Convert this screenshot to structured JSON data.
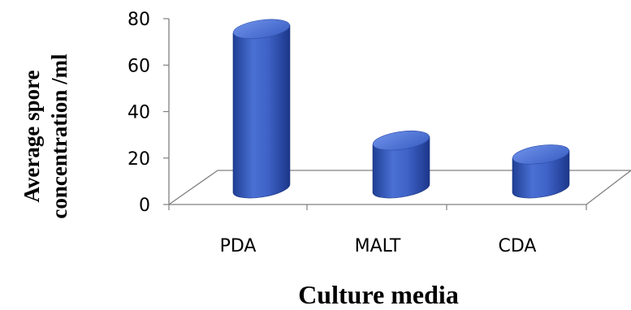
{
  "chart_data": {
    "type": "bar",
    "style": "3d-cylinder",
    "categories": [
      "PDA",
      "MALT",
      "CDA"
    ],
    "values": [
      71,
      23,
      17
    ],
    "ylim": [
      0,
      80
    ],
    "yticks": [
      0,
      20,
      40,
      60,
      80
    ],
    "xlabel": "Culture media",
    "ylabel_lines": [
      "Average spore",
      "concentration /ml"
    ],
    "grid": false,
    "legend": "none",
    "colors": {
      "bar_body": "#3f63c8",
      "bar_body_dark": "#1f3f94",
      "bar_top": "#5c82e0",
      "bar_top_dark": "#3a5fc4",
      "axis": "#808080"
    }
  }
}
